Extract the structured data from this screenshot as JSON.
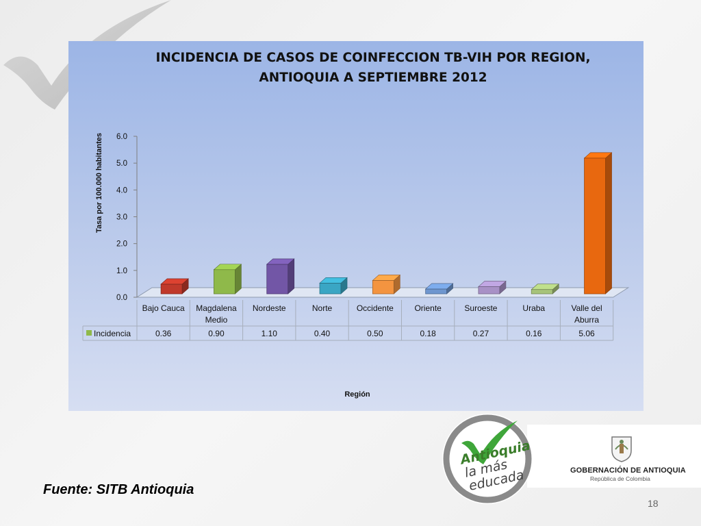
{
  "slide": {
    "source": "Fuente: SITB Antioquia",
    "page_number": "18"
  },
  "branding": {
    "badge_text": [
      "Antioquia",
      "la más",
      "educada"
    ],
    "government_name": "GOBERNACIÓN DE ANTIOQUIA",
    "government_subtitle": "República de Colombia"
  },
  "colors": {
    "bar_colors": [
      "#c0392b",
      "#8fb94a",
      "#7256a6",
      "#3aa6c4",
      "#f39440",
      "#6e96cf",
      "#a891c6",
      "#a7c37a",
      "#e8680f"
    ],
    "legend_swatch": "#8fb94a",
    "panel_top": "#9cb5e6",
    "panel_bottom": "#d6def2"
  },
  "chart_data": {
    "type": "bar",
    "title_lines": [
      "INCIDENCIA  DE CASOS DE COINFECCION TB-VIH POR REGION,",
      "ANTIOQUIA A  SEPTIEMBRE 2012"
    ],
    "ylabel": "Tasa por 100.000 habitantes",
    "xlabel": "Región",
    "ylim": [
      0,
      6
    ],
    "yticks": [
      "0.0",
      "1.0",
      "2.0",
      "3.0",
      "4.0",
      "5.0",
      "6.0"
    ],
    "categories": [
      [
        "Bajo Cauca"
      ],
      [
        "Magdalena",
        "Medio"
      ],
      [
        "Nordeste"
      ],
      [
        "Norte"
      ],
      [
        "Occidente"
      ],
      [
        "Oriente"
      ],
      [
        "Suroeste"
      ],
      [
        "Uraba"
      ],
      [
        "Valle del",
        "Aburra"
      ]
    ],
    "series": [
      {
        "name": "Incidencia",
        "values": [
          0.36,
          0.9,
          1.1,
          0.4,
          0.5,
          0.18,
          0.27,
          0.16,
          5.06
        ],
        "value_labels": [
          "0.36",
          "0.90",
          "1.10",
          "0.40",
          "0.50",
          "0.18",
          "0.27",
          "0.16",
          "5.06"
        ]
      }
    ],
    "data_table": true
  }
}
